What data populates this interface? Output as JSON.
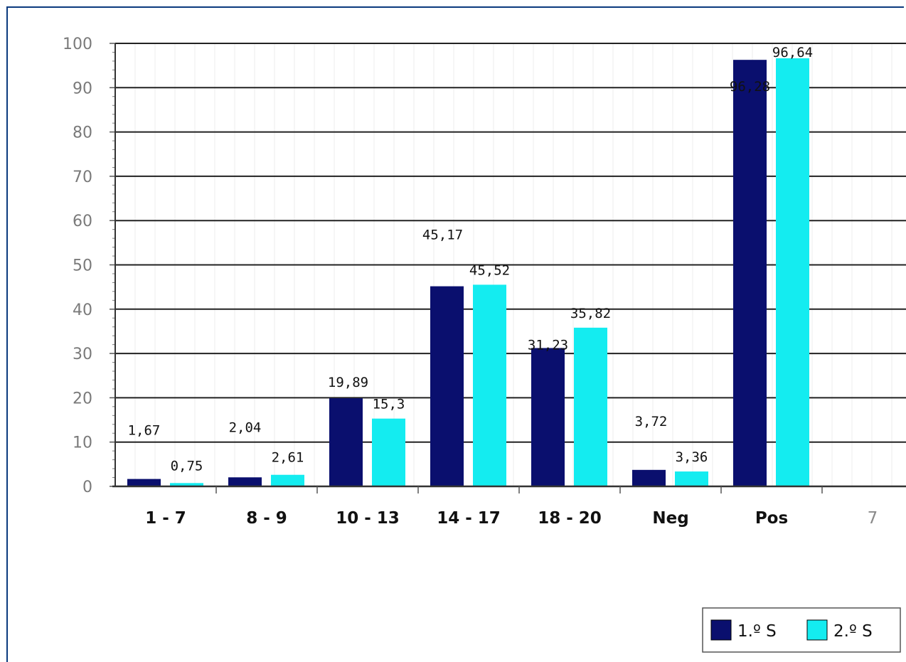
{
  "chart_data": {
    "type": "bar",
    "categories": [
      "1 - 7",
      "8 - 9",
      "10 - 13",
      "14 - 17",
      "18 - 20",
      "Neg",
      "Pos",
      "7"
    ],
    "series": [
      {
        "name": "1.º S",
        "color": "#0a0f6e",
        "values": [
          1.67,
          2.04,
          19.89,
          45.17,
          31.23,
          3.72,
          96.28,
          null
        ],
        "labels": [
          "1,67",
          "2,04",
          "19,89",
          "45,17",
          "31,23",
          "3,72",
          "96,28",
          ""
        ]
      },
      {
        "name": "2.º S",
        "color": "#14ecf0",
        "values": [
          0.75,
          2.61,
          15.3,
          45.52,
          35.82,
          3.36,
          96.64,
          null
        ],
        "labels": [
          "0,75",
          "2,61",
          "15,3",
          "45,52",
          "35,82",
          "3,36",
          "96,64",
          ""
        ]
      }
    ],
    "yticks": [
      "0",
      "10",
      "20",
      "30",
      "40",
      "50",
      "60",
      "70",
      "80",
      "90",
      "100"
    ],
    "ylim": [
      0,
      100
    ],
    "grid": true,
    "legend_position": "bottom-right"
  }
}
